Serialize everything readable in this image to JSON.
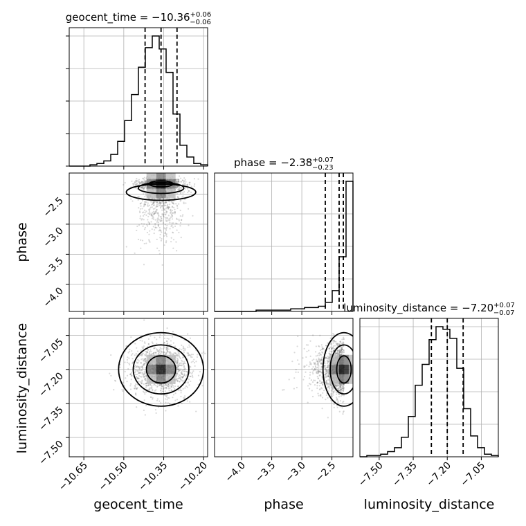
{
  "chart_data": {
    "type": "corner",
    "parameters": [
      "geocent_time",
      "phase",
      "luminosity_distance"
    ],
    "titles": [
      {
        "param": "geocent_time",
        "label": "geocent_time",
        "median": "−10.36",
        "plus": "+0.06",
        "minus": "−0.06"
      },
      {
        "param": "phase",
        "label": "phase",
        "median": "−2.38",
        "plus": "+0.07",
        "minus": "−0.23"
      },
      {
        "param": "luminosity_distance",
        "label": "luminosity_distance",
        "median": "−7.20",
        "plus": "+0.07",
        "minus": "−0.07"
      }
    ],
    "axes": {
      "geocent_time": {
        "range": [
          -10.705,
          -10.185
        ],
        "ticks": [
          -10.65,
          -10.5,
          -10.35,
          -10.2
        ],
        "tick_labels": [
          "−10.65",
          "−10.50",
          "−10.35",
          "−10.20"
        ]
      },
      "phase": {
        "range": [
          -4.45,
          -2.15
        ],
        "ticks": [
          -4.0,
          -3.5,
          -3.0,
          -2.5
        ],
        "tick_labels": [
          "−4.0",
          "−3.5",
          "−3.0",
          "−2.5"
        ]
      },
      "luminosity_distance": {
        "range": [
          -7.585,
          -6.975
        ],
        "ticks": [
          -7.5,
          -7.35,
          -7.2,
          -7.05
        ],
        "tick_labels": [
          "−7.50",
          "−7.35",
          "−7.20",
          "−7.05"
        ]
      }
    },
    "histograms": [
      {
        "param": "geocent_time",
        "bin_edges": [
          -10.705,
          -10.679,
          -10.653,
          -10.627,
          -10.601,
          -10.575,
          -10.549,
          -10.523,
          -10.497,
          -10.471,
          -10.445,
          -10.419,
          -10.393,
          -10.367,
          -10.341,
          -10.315,
          -10.289,
          -10.263,
          -10.237,
          -10.211,
          -10.185
        ],
        "heights": [
          0.0,
          0.0,
          0.0,
          0.01,
          0.02,
          0.04,
          0.09,
          0.19,
          0.35,
          0.55,
          0.76,
          0.91,
          1.0,
          0.9,
          0.72,
          0.4,
          0.16,
          0.07,
          0.02,
          0.01
        ],
        "quantiles": [
          -10.42,
          -10.36,
          -10.3
        ]
      },
      {
        "param": "phase",
        "bin_edges": [
          -4.45,
          -4.335,
          -4.22,
          -4.105,
          -3.99,
          -3.875,
          -3.76,
          -3.645,
          -3.53,
          -3.415,
          -3.3,
          -3.185,
          -3.07,
          -2.955,
          -2.84,
          -2.725,
          -2.61,
          -2.495,
          -2.38,
          -2.265,
          -2.15
        ],
        "heights": [
          0.0,
          0.0,
          0.0,
          0.0,
          0.0,
          0.0,
          0.01,
          0.01,
          0.01,
          0.01,
          0.01,
          0.02,
          0.02,
          0.03,
          0.03,
          0.04,
          0.07,
          0.16,
          0.42,
          1.0
        ],
        "quantiles": [
          -2.61,
          -2.38,
          -2.31
        ]
      },
      {
        "param": "luminosity_distance",
        "bin_edges": [
          -7.585,
          -7.5545,
          -7.524,
          -7.4935,
          -7.463,
          -7.4325,
          -7.402,
          -7.3715,
          -7.341,
          -7.3105,
          -7.28,
          -7.2495,
          -7.219,
          -7.1885,
          -7.158,
          -7.1275,
          -7.097,
          -7.0665,
          -7.036,
          -7.0055,
          -6.975
        ],
        "heights": [
          0.0,
          0.01,
          0.01,
          0.02,
          0.04,
          0.07,
          0.15,
          0.31,
          0.55,
          0.71,
          0.9,
          1.0,
          0.98,
          0.91,
          0.68,
          0.37,
          0.16,
          0.07,
          0.02,
          0.01
        ],
        "quantiles": [
          -7.27,
          -7.2,
          -7.13
        ]
      }
    ],
    "pairs": [
      {
        "x": "geocent_time",
        "y": "phase",
        "peak": [
          -10.36,
          -2.33
        ],
        "spread": [
          0.045,
          0.05
        ],
        "tail": "downward",
        "levels": 3
      },
      {
        "x": "geocent_time",
        "y": "luminosity_distance",
        "peak": [
          -10.36,
          -7.2
        ],
        "spread": [
          0.055,
          0.06
        ],
        "levels": 3
      },
      {
        "x": "phase",
        "y": "luminosity_distance",
        "peak": [
          -2.3,
          -7.2
        ],
        "spread": [
          0.12,
          0.06
        ],
        "levels": 3
      }
    ],
    "colors": {
      "line": "#000000",
      "grid": "#b0b0b0",
      "points": "#666666"
    }
  }
}
